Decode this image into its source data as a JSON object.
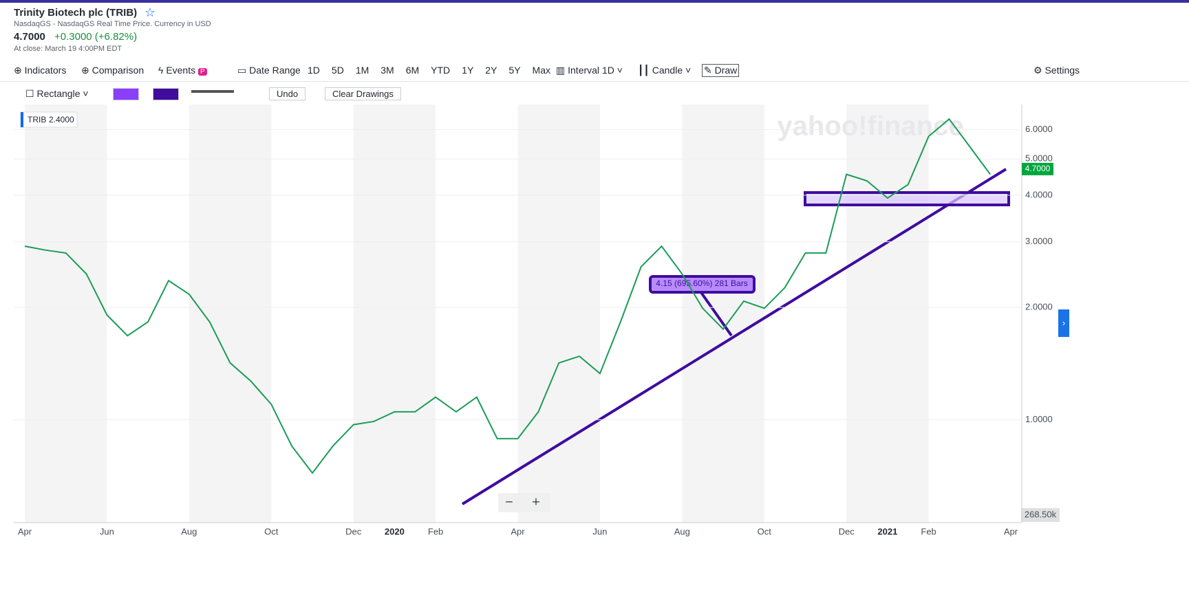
{
  "header": {
    "title": "Trinity Biotech plc (TRIB)",
    "exchange": "NasdaqGS - NasdaqGS Real Time Price. Currency in USD",
    "price": "4.7000",
    "change": "+0.3000 (+6.82%)",
    "close_time": "At close: March 19 4:00PM EDT"
  },
  "toolbar": {
    "indicators": "Indicators",
    "comparison": "Comparison",
    "events": "Events",
    "date_range": "Date Range",
    "ranges": [
      "1D",
      "5D",
      "1M",
      "3M",
      "6M",
      "YTD",
      "1Y",
      "2Y",
      "5Y",
      "Max"
    ],
    "interval": "Interval",
    "interval_value": "1D",
    "chart_style": "Candle",
    "draw": "Draw",
    "settings": "Settings"
  },
  "draw_bar": {
    "shape": "Rectangle",
    "undo": "Undo",
    "clear": "Clear Drawings"
  },
  "chart_data": {
    "type": "line",
    "log_scale": true,
    "color": "#1a9c57",
    "grid": true,
    "categories": [
      "Apr",
      null,
      null,
      null,
      "Jun",
      null,
      null,
      null,
      "Aug",
      null,
      null,
      null,
      "Oct",
      null,
      null,
      null,
      "Dec",
      null,
      "2020",
      null,
      "Feb",
      null,
      null,
      null,
      "Apr",
      null,
      null,
      null,
      "Jun",
      null,
      null,
      null,
      "Aug",
      null,
      null,
      null,
      "Oct",
      null,
      null,
      null,
      "Dec",
      null,
      "2021",
      null,
      "Feb",
      null,
      null,
      null,
      "Apr"
    ],
    "values": [
      2.92,
      2.85,
      2.8,
      2.46,
      1.91,
      1.68,
      1.83,
      2.36,
      2.17,
      1.83,
      1.42,
      1.27,
      1.1,
      0.85,
      0.72,
      0.85,
      0.97,
      0.99,
      1.05,
      1.05,
      1.15,
      1.05,
      1.15,
      0.89,
      0.89,
      1.05,
      1.42,
      1.48,
      1.33,
      1.83,
      2.57,
      2.92,
      2.46,
      1.99,
      1.75,
      2.08,
      1.99,
      2.26,
      2.8,
      2.8,
      4.55,
      4.37,
      3.93,
      4.27,
      5.75,
      6.4,
      5.4,
      4.55,
      null
    ],
    "ylim": [
      0.53,
      7
    ],
    "yticks": [
      {
        "value": 1,
        "label": "1.0000"
      },
      {
        "value": 2,
        "label": "2.0000"
      },
      {
        "value": 3,
        "label": "3.0000"
      },
      {
        "value": 4,
        "label": "4.0000"
      },
      {
        "value": 5,
        "label": "5.0000"
      },
      {
        "value": 6,
        "label": "6.0000"
      }
    ],
    "legend_label": "TRIB",
    "legend_value": "2.4000",
    "last_price": {
      "value": 4.7,
      "label": "4.7000"
    },
    "measurement": "4.15 (695.60%) 281 Bars",
    "volume_label": "268.50k",
    "watermark": "yahoo!finance"
  }
}
